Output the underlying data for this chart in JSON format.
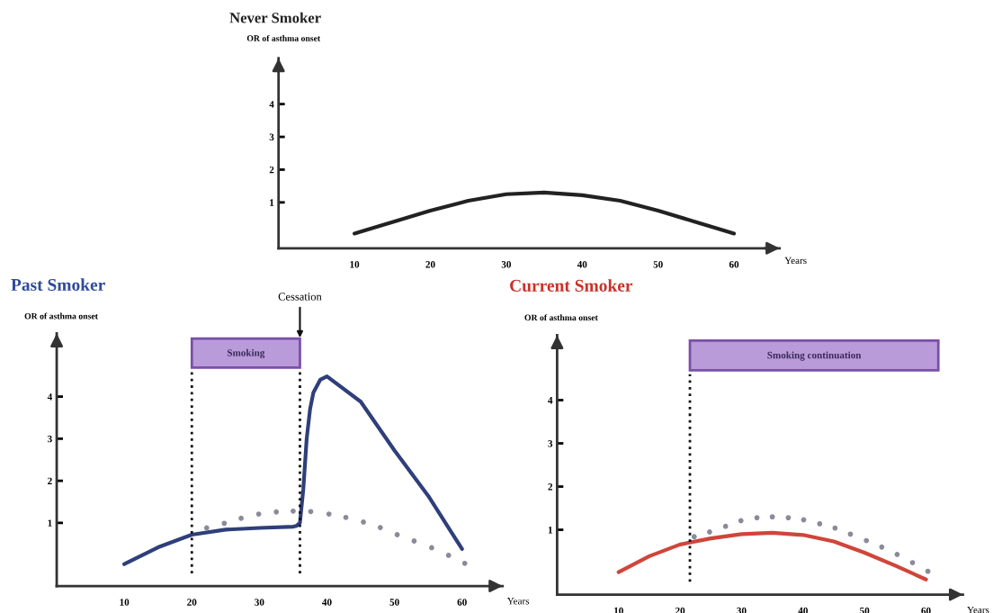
{
  "chart_data": [
    {
      "type": "line",
      "title": "Never Smoker",
      "xlabel": "Years",
      "ylabel": "OR of asthma onset",
      "xlim": [
        0,
        66
      ],
      "xticks": [
        10,
        20,
        30,
        40,
        50,
        60
      ],
      "ylim": [
        -0.4,
        5.4
      ],
      "yticks": [
        1,
        2,
        3,
        4
      ],
      "series": [
        {
          "color": "#222222",
          "x": [
            10,
            15,
            20,
            25,
            30,
            35,
            40,
            45,
            50,
            55,
            60
          ],
          "values": [
            0.05,
            0.4,
            0.75,
            1.05,
            1.25,
            1.3,
            1.22,
            1.05,
            0.75,
            0.4,
            0.05
          ]
        }
      ]
    },
    {
      "type": "line",
      "title": "Past Smoker",
      "xlabel": "Years",
      "ylabel": "OR of asthma onset",
      "xlim": [
        0,
        66
      ],
      "xticks": [
        10,
        20,
        30,
        40,
        50,
        60
      ],
      "ylim": [
        -0.5,
        5.5
      ],
      "yticks": [
        1,
        2,
        3,
        4
      ],
      "series": [
        {
          "type": "scatter",
          "marker": "circle",
          "color": "#8a8a9a",
          "x": [
            22.2,
            24.8,
            27.3,
            29.9,
            32.5,
            35.0,
            37.6,
            40.3,
            42.8,
            45.4,
            47.9,
            50.4,
            52.9,
            55.5,
            58.0,
            60.4
          ],
          "values": [
            0.88,
            0.99,
            1.11,
            1.21,
            1.26,
            1.28,
            1.27,
            1.21,
            1.13,
            1.02,
            0.89,
            0.72,
            0.57,
            0.41,
            0.23,
            0.04
          ]
        },
        {
          "color": "#2f3f7a",
          "x": [
            10,
            15,
            20,
            25,
            30,
            35,
            35.5,
            36,
            36.5,
            37,
            37.5,
            38,
            39,
            40,
            45,
            50,
            55,
            60
          ],
          "values": [
            0.02,
            0.42,
            0.72,
            0.84,
            0.88,
            0.91,
            0.93,
            1.0,
            1.8,
            3.0,
            3.7,
            4.1,
            4.4,
            4.48,
            3.88,
            2.72,
            1.64,
            0.38
          ]
        }
      ],
      "ref_lines": [
        {
          "axis": "x",
          "value": 20,
          "line_style": "dotted"
        },
        {
          "axis": "x",
          "value": 36,
          "line_style": "dotted"
        }
      ],
      "bands": [
        {
          "axis": "x",
          "from": 20,
          "to": 36,
          "label": "Smoking",
          "color": "#b99bd9"
        }
      ],
      "annotations": [
        {
          "text": "Cessation",
          "x": 36,
          "y": 5.4
        }
      ]
    },
    {
      "type": "line",
      "title": "Current Smoker",
      "xlabel": "Years",
      "ylabel": "OR of asthma onset",
      "xlim": [
        0,
        66
      ],
      "xticks": [
        10,
        20,
        30,
        40,
        50,
        60
      ],
      "ylim": [
        -0.5,
        5.5
      ],
      "yticks": [
        1,
        2,
        3,
        4
      ],
      "series": [
        {
          "type": "scatter",
          "marker": "circle",
          "color": "#8a8a9a",
          "x": [
            22.3,
            24.8,
            27.4,
            29.9,
            32.5,
            35.0,
            37.6,
            40.1,
            42.7,
            45.2,
            47.7,
            50.3,
            52.8,
            55.3,
            57.8,
            60.3
          ],
          "values": [
            0.84,
            0.95,
            1.08,
            1.21,
            1.28,
            1.3,
            1.28,
            1.23,
            1.14,
            1.04,
            0.9,
            0.75,
            0.6,
            0.43,
            0.24,
            0.04
          ]
        },
        {
          "color": "#d0453a",
          "x": [
            10,
            15,
            20,
            25,
            30,
            35,
            40,
            45,
            50,
            55,
            60
          ],
          "values": [
            0.02,
            0.39,
            0.66,
            0.8,
            0.9,
            0.93,
            0.88,
            0.73,
            0.47,
            0.17,
            -0.15
          ]
        }
      ],
      "ref_lines": [
        {
          "axis": "x",
          "value": 21.6,
          "line_style": "dotted"
        }
      ],
      "bands": [
        {
          "axis": "x",
          "from": 21.6,
          "to": 62,
          "label": "Smoking continuation",
          "color": "#b99bd9"
        }
      ]
    }
  ]
}
